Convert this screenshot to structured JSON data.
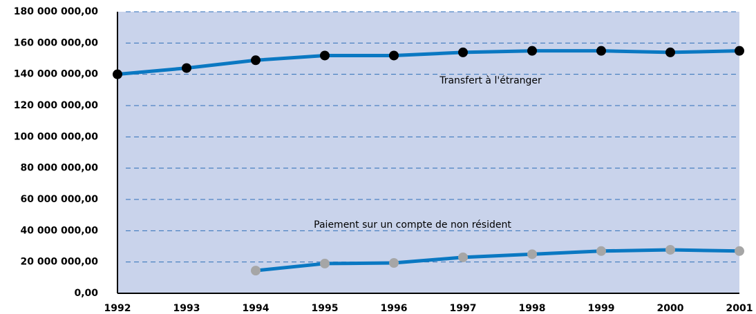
{
  "chart_data": {
    "type": "line",
    "categories": [
      "1992",
      "1993",
      "1994",
      "1995",
      "1996",
      "1997",
      "1998",
      "1999",
      "2000",
      "2001"
    ],
    "series": [
      {
        "name": "Transfert à l'étranger",
        "color": "#0a78c2",
        "marker_color": "#000000",
        "values": [
          140000000,
          144000000,
          149000000,
          152000000,
          152000000,
          154000000,
          155000000,
          155000000,
          154000000,
          155000000
        ]
      },
      {
        "name": "Paiement sur un compte de non résident",
        "color": "#0a78c2",
        "marker_color": "#a6a6a6",
        "values": [
          null,
          null,
          14500000,
          19000000,
          19400000,
          23000000,
          25000000,
          27000000,
          27800000,
          27000000
        ]
      }
    ],
    "annotations": [
      "Transfert à l'étranger",
      "Paiement sur un compte de non résident"
    ],
    "ylim": [
      0,
      180000000
    ],
    "yticks": [
      {
        "value": 0,
        "label": "0,00"
      },
      {
        "value": 20000000,
        "label": "20 000 000,00"
      },
      {
        "value": 40000000,
        "label": "40 000 000,00"
      },
      {
        "value": 60000000,
        "label": "60 000 000,00"
      },
      {
        "value": 80000000,
        "label": "80 000 000,00"
      },
      {
        "value": 100000000,
        "label": "100 000 000,00"
      },
      {
        "value": 120000000,
        "label": "120 000 000,00"
      },
      {
        "value": 140000000,
        "label": "140 000 000,00"
      },
      {
        "value": 160000000,
        "label": "160 000 000,00"
      },
      {
        "value": 180000000,
        "label": "180 000 000,00"
      }
    ],
    "grid": true,
    "background": "#c9d3eb"
  }
}
